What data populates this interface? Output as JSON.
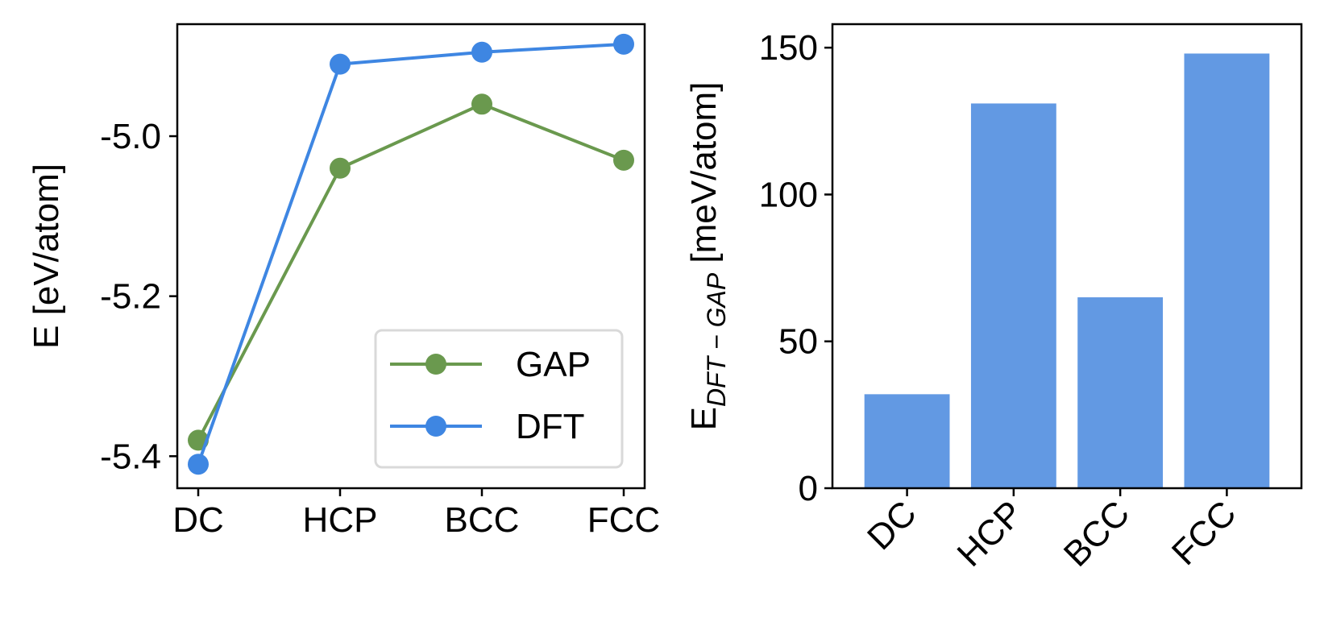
{
  "colors": {
    "gap": "#6a994e",
    "dft": "#3e86e2",
    "bar": "#6299e3",
    "axis": "#000000",
    "legend_border": "#d9d9d9"
  },
  "chart_data": [
    {
      "type": "line",
      "categories": [
        "DC",
        "HCP",
        "BCC",
        "FCC"
      ],
      "series": [
        {
          "name": "GAP",
          "values": [
            -5.38,
            -5.04,
            -4.96,
            -5.03
          ],
          "color": "#6a994e",
          "marker": "circle"
        },
        {
          "name": "DFT",
          "values": [
            -5.41,
            -4.91,
            -4.895,
            -4.885
          ],
          "color": "#3e86e2",
          "marker": "circle"
        }
      ],
      "ylabel": "E [eV/atom]",
      "xlabel": "",
      "ylim": [
        -5.44,
        -4.86
      ],
      "yticks": [
        -5.4,
        -5.2,
        -5.0
      ],
      "ytick_labels": [
        "-5.4",
        "-5.2",
        "-5.0"
      ],
      "grid": false,
      "legend": {
        "position": "bottom-right",
        "entries": [
          "GAP",
          "DFT"
        ]
      }
    },
    {
      "type": "bar",
      "categories": [
        "DC",
        "HCP",
        "BCC",
        "FCC"
      ],
      "values": [
        32,
        131,
        65,
        148
      ],
      "color": "#6299e3",
      "ylabel_main": "E",
      "ylabel_sub": "DFT − GAP",
      "ylabel_unit": " [meV/atom]",
      "ylim": [
        0,
        158
      ],
      "yticks": [
        0,
        50,
        100,
        150
      ],
      "ytick_labels": [
        "0",
        "50",
        "100",
        "150"
      ],
      "xtick_rotation": "45 degrees",
      "grid": false
    }
  ]
}
